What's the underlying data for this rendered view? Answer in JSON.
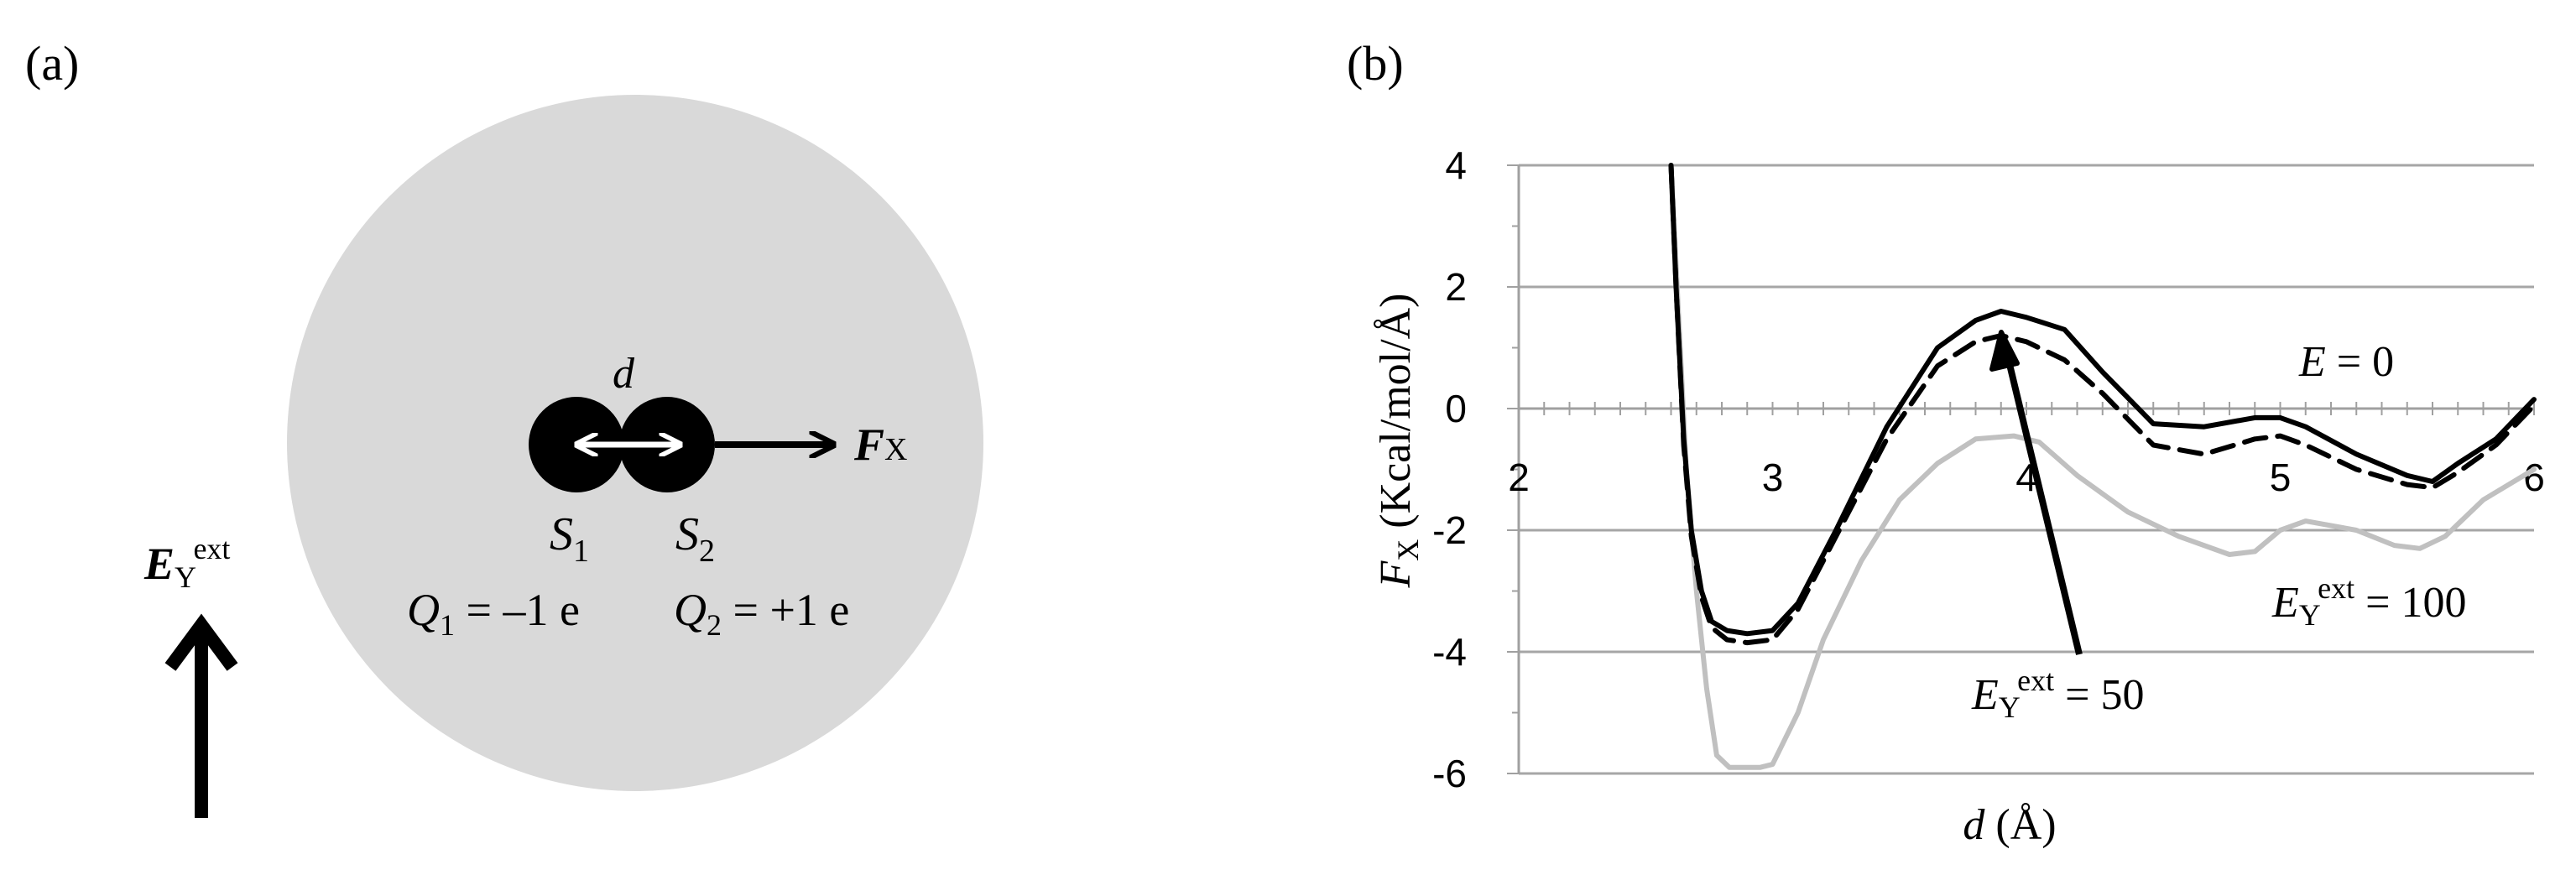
{
  "panel_a": {
    "label": "(a)",
    "sphere_color": "#d9d9d9",
    "distance_label": "d",
    "force_symbol": "F",
    "force_subscript": "X",
    "site1": {
      "symbol": "S",
      "subscript": "1",
      "charge_symbol": "Q",
      "charge_subscript": "1",
      "charge_value": " = –1 e"
    },
    "site2": {
      "symbol": "S",
      "subscript": "2",
      "charge_symbol": "Q",
      "charge_subscript": "2",
      "charge_value": " = +1 e"
    },
    "field": {
      "symbol": "E",
      "subscript": "Y",
      "superscript": "ext"
    }
  },
  "panel_b": {
    "label": "(b)",
    "annotations": {
      "e0": {
        "symbol": "E",
        "value": " = 0"
      },
      "e100": {
        "symbol": "E",
        "subscript": "Y",
        "superscript": "ext",
        "value": " = 100"
      },
      "e50": {
        "symbol": "E",
        "subscript": "Y",
        "superscript": "ext",
        "value": " = 50"
      }
    }
  },
  "chart_data": {
    "type": "line",
    "xlabel": "d (Å)",
    "xlabel_parts": {
      "symbol": "d",
      "unit": " (Å)"
    },
    "ylabel_parts": {
      "symbol": "F",
      "subscript": "X",
      "unit": " (Kcal/mol/Å)"
    },
    "xlim": [
      2,
      6
    ],
    "ylim": [
      -6,
      4
    ],
    "x_ticks": [
      "2",
      "3",
      "4",
      "5",
      "6"
    ],
    "y_ticks": [
      "4",
      "2",
      "0",
      "-2",
      "-4",
      "-6"
    ],
    "grid": "horizontal",
    "series": [
      {
        "name": "E = 0",
        "color": "#000000",
        "dash": "solid",
        "x": [
          2.6,
          2.62,
          2.65,
          2.68,
          2.72,
          2.76,
          2.82,
          2.9,
          3.0,
          3.1,
          3.25,
          3.45,
          3.65,
          3.8,
          3.9,
          4.0,
          4.15,
          4.3,
          4.5,
          4.7,
          4.9,
          5.0,
          5.1,
          5.3,
          5.5,
          5.6,
          5.7,
          5.85,
          6.0
        ],
        "y": [
          4.0,
          2.0,
          -0.5,
          -2.0,
          -3.0,
          -3.5,
          -3.65,
          -3.7,
          -3.65,
          -3.2,
          -2.0,
          -0.3,
          1.0,
          1.45,
          1.6,
          1.5,
          1.3,
          0.6,
          -0.25,
          -0.3,
          -0.15,
          -0.15,
          -0.3,
          -0.75,
          -1.1,
          -1.2,
          -0.9,
          -0.5,
          0.15
        ]
      },
      {
        "name": "E_Y^ext = 50",
        "color": "#000000",
        "dash": "dashed",
        "x": [
          2.6,
          2.62,
          2.65,
          2.68,
          2.72,
          2.76,
          2.82,
          2.9,
          3.0,
          3.1,
          3.25,
          3.45,
          3.65,
          3.8,
          3.9,
          4.0,
          4.15,
          4.3,
          4.5,
          4.7,
          4.9,
          5.0,
          5.1,
          5.3,
          5.5,
          5.6,
          5.7,
          5.85,
          6.0
        ],
        "y": [
          4.0,
          2.0,
          -0.6,
          -2.1,
          -3.1,
          -3.6,
          -3.8,
          -3.85,
          -3.8,
          -3.3,
          -2.1,
          -0.5,
          0.7,
          1.1,
          1.2,
          1.1,
          0.8,
          0.25,
          -0.6,
          -0.75,
          -0.5,
          -0.45,
          -0.6,
          -1.0,
          -1.25,
          -1.3,
          -1.05,
          -0.6,
          0.05
        ]
      },
      {
        "name": "E_Y^ext = 100",
        "color": "#c0c0c0",
        "dash": "solid",
        "x": [
          2.6,
          2.63,
          2.66,
          2.7,
          2.74,
          2.78,
          2.83,
          2.9,
          2.95,
          3.0,
          3.1,
          3.2,
          3.35,
          3.5,
          3.65,
          3.8,
          3.95,
          4.05,
          4.2,
          4.4,
          4.6,
          4.8,
          4.9,
          5.0,
          5.1,
          5.3,
          5.45,
          5.55,
          5.65,
          5.8,
          6.0
        ],
        "y": [
          4.0,
          1.5,
          -1.0,
          -3.0,
          -4.6,
          -5.7,
          -5.9,
          -5.9,
          -5.9,
          -5.85,
          -5.0,
          -3.8,
          -2.5,
          -1.5,
          -0.9,
          -0.5,
          -0.45,
          -0.55,
          -1.1,
          -1.7,
          -2.1,
          -2.4,
          -2.35,
          -2.0,
          -1.85,
          -2.0,
          -2.25,
          -2.3,
          -2.1,
          -1.5,
          -1.0
        ]
      }
    ]
  }
}
